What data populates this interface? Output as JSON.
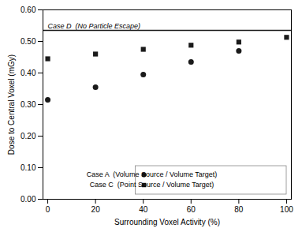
{
  "chart_data": {
    "type": "scatter",
    "xlabel": "Surrounding Voxel Activity (%)",
    "ylabel": "Dose to Central Voxel (mGy)",
    "series": [
      {
        "name": "Case A  (Volume Source / Volume Target)",
        "x": [
          0,
          20,
          40,
          60,
          80
        ],
        "values": [
          0.315,
          0.355,
          0.395,
          0.435,
          0.47
        ],
        "color": "#1a1a1a",
        "marker": "circle"
      },
      {
        "name": "Case C  (Point Source / Volume Target)",
        "x": [
          0,
          20,
          40,
          60,
          80,
          100
        ],
        "values": [
          0.445,
          0.46,
          0.475,
          0.488,
          0.498,
          0.513
        ],
        "color": "#1a1a1a",
        "marker": "square"
      }
    ],
    "hline": {
      "value": 0.535,
      "label": "Case D  (No Particle Escape)",
      "color": "#1a1a1a"
    },
    "xlim": [
      -2,
      102
    ],
    "ylim": [
      0.0,
      0.6
    ],
    "xticks": [
      0,
      20,
      40,
      60,
      80,
      100
    ],
    "yticks": [
      {
        "value": 0.0,
        "label": "0.00"
      },
      {
        "value": 0.1,
        "label": "0.10"
      },
      {
        "value": 0.2,
        "label": "0.20"
      },
      {
        "value": 0.3,
        "label": "0.30"
      },
      {
        "value": 0.4,
        "label": "0.40"
      },
      {
        "value": 0.5,
        "label": "0.50"
      },
      {
        "value": 0.6,
        "label": "0.60"
      }
    ],
    "grid": false,
    "legend": "lower right"
  }
}
